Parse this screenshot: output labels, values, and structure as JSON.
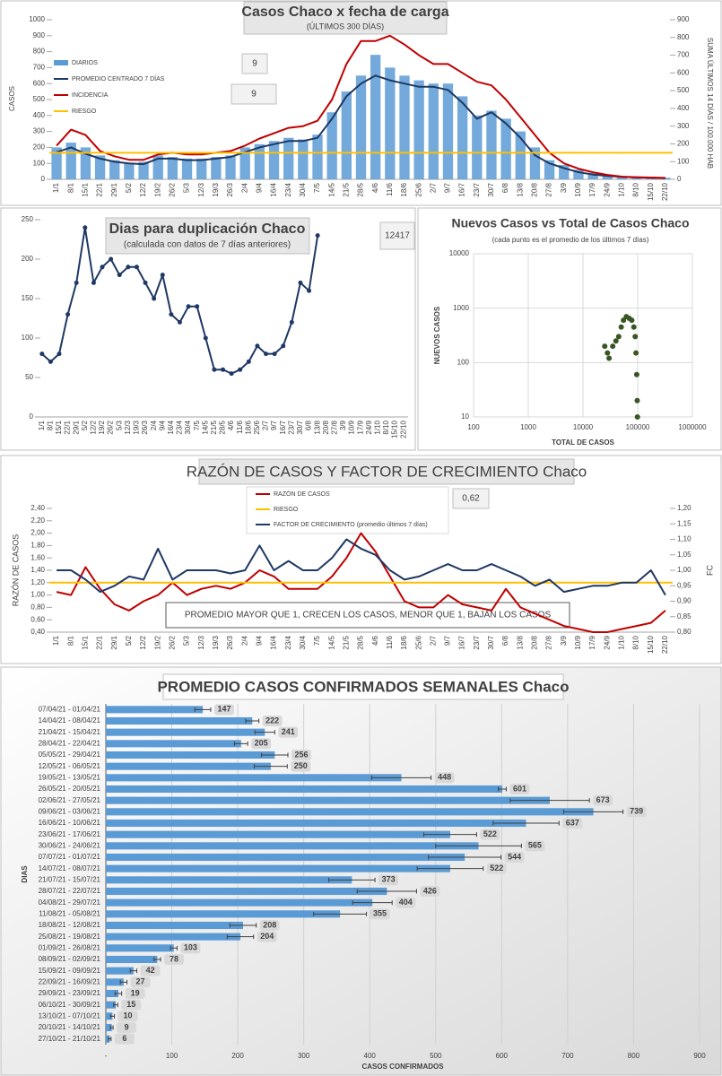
{
  "chart_data": [
    {
      "type": "combo",
      "title": "Casos  Chaco  x fecha de carga",
      "subtitle": "(ÚLTIMOS 300 DÍAS)",
      "y_label": "CASOS",
      "y2_label": "SUMA  ÚLTIMOS 14 DÍAS / 100.000 HAB",
      "annotations": [
        "9",
        "9"
      ],
      "legend": "upper left",
      "grid": false,
      "categories": [
        "1/1",
        "8/1",
        "15/1",
        "22/1",
        "29/1",
        "5/2",
        "12/2",
        "19/2",
        "26/2",
        "5/3",
        "12/3",
        "19/3",
        "26/3",
        "2/4",
        "9/4",
        "16/4",
        "23/4",
        "30/4",
        "7/5",
        "14/5",
        "21/5",
        "28/5",
        "4/6",
        "11/6",
        "18/6",
        "25/6",
        "2/7",
        "9/7",
        "16/7",
        "23/7",
        "30/7",
        "6/8",
        "13/8",
        "20/8",
        "27/8",
        "3/9",
        "10/9",
        "17/9",
        "24/9",
        "1/10",
        "8/10",
        "15/10",
        "22/10"
      ],
      "series": [
        {
          "name": "DIARIOS",
          "color": "#5b9bd5",
          "mark": "bar",
          "values": [
            200,
            230,
            200,
            150,
            120,
            100,
            110,
            150,
            140,
            130,
            130,
            140,
            150,
            200,
            220,
            240,
            260,
            250,
            280,
            420,
            550,
            650,
            780,
            700,
            650,
            620,
            600,
            600,
            520,
            400,
            430,
            380,
            300,
            200,
            120,
            90,
            60,
            40,
            30,
            20,
            15,
            12,
            10
          ]
        },
        {
          "name": "PROMEDIO CENTRADO 7 DÍAS",
          "color": "#1f3864",
          "mark": "line",
          "values": [
            170,
            200,
            160,
            130,
            110,
            100,
            95,
            130,
            130,
            120,
            120,
            130,
            140,
            170,
            200,
            220,
            240,
            240,
            260,
            380,
            520,
            600,
            650,
            620,
            600,
            580,
            580,
            560,
            480,
            380,
            420,
            350,
            260,
            150,
            100,
            70,
            45,
            30,
            22,
            15,
            12,
            10,
            8
          ]
        },
        {
          "name": "INCIDENCIA",
          "color": "#c00000",
          "mark": "line",
          "axis": "y2",
          "values": [
            190,
            280,
            250,
            160,
            130,
            110,
            110,
            140,
            150,
            140,
            140,
            150,
            160,
            190,
            230,
            260,
            290,
            300,
            330,
            450,
            650,
            780,
            780,
            810,
            760,
            700,
            650,
            650,
            600,
            550,
            530,
            450,
            350,
            250,
            150,
            90,
            60,
            40,
            25,
            15,
            12,
            10,
            8
          ]
        },
        {
          "name": "RIESGO",
          "color": "#ffc000",
          "mark": "hline",
          "axis": "y2",
          "value": 150
        }
      ],
      "ylim": [
        0,
        1000
      ],
      "yticks": [
        0,
        100,
        200,
        300,
        400,
        500,
        600,
        700,
        800,
        900,
        1000
      ],
      "y2lim": [
        0,
        900
      ],
      "y2ticks": [
        0,
        100,
        200,
        300,
        400,
        500,
        600,
        700,
        800,
        900
      ]
    },
    {
      "type": "line",
      "title": "Dias para duplicación Chaco",
      "subtitle": "(calculada con datos de 7 días anteriores)",
      "annotations": [
        "12417"
      ],
      "color": "#1f3864",
      "markers": true,
      "categories": [
        "1/1",
        "8/1",
        "15/1",
        "22/1",
        "29/1",
        "5/2",
        "12/2",
        "19/2",
        "26/2",
        "5/3",
        "12/3",
        "19/3",
        "26/3",
        "2/4",
        "9/4",
        "16/4",
        "23/4",
        "30/4",
        "7/5",
        "14/5",
        "21/5",
        "28/5",
        "4/6",
        "11/6",
        "18/6",
        "25/6",
        "2/7",
        "9/7",
        "16/7",
        "23/7",
        "30/7",
        "6/8",
        "13/8",
        "20/8",
        "27/8",
        "3/9",
        "10/9",
        "17/9",
        "24/9",
        "1/10",
        "8/10",
        "15/10",
        "22/10"
      ],
      "values": [
        80,
        70,
        80,
        130,
        170,
        240,
        170,
        190,
        200,
        180,
        190,
        190,
        170,
        150,
        180,
        130,
        120,
        140,
        140,
        100,
        60,
        60,
        55,
        60,
        70,
        90,
        80,
        80,
        90,
        120,
        170,
        160,
        230,
        null,
        null,
        null,
        null,
        null,
        null,
        null,
        null,
        null,
        null
      ],
      "ylim": [
        0,
        250
      ],
      "yticks": [
        0,
        50,
        100,
        150,
        200,
        250
      ]
    },
    {
      "type": "scatter",
      "title": "Nuevos Casos vs Total de Casos Chaco",
      "subtitle": "(cada punto es el promedio de los últimos 7 días)",
      "x_label": "TOTAL DE CASOS",
      "y_label": "NUEVOS  CASOS",
      "color": "#375623",
      "log_x": true,
      "log_y": true,
      "grid": true,
      "x": [
        25000,
        28000,
        30000,
        35000,
        40000,
        45000,
        50000,
        55000,
        62000,
        70000,
        78000,
        85000,
        90000,
        93000,
        96000,
        98000,
        99000
      ],
      "values": [
        200,
        150,
        120,
        200,
        250,
        300,
        450,
        600,
        700,
        650,
        600,
        450,
        300,
        150,
        60,
        20,
        10
      ],
      "xlim": [
        100,
        1000000
      ],
      "xticks": [
        100,
        1000,
        10000,
        100000,
        1000000
      ],
      "ylim": [
        10,
        10000
      ],
      "yticks": [
        10,
        100,
        1000,
        10000
      ]
    },
    {
      "type": "combo",
      "title": "RAZÓN DE CASOS Y FACTOR DE CRECIMIENTO Chaco",
      "y_label": "RAZÓN DE CASOS",
      "y2_label": "FC",
      "annotations": [
        "0,62"
      ],
      "note": "PROMEDIO MAYOR QUE 1, CRECEN LOS CASOS, MENOR QUE 1, BAJAN LOS CASOS",
      "legend": "upper center",
      "grid": false,
      "categories": [
        "1/1",
        "8/1",
        "15/1",
        "22/1",
        "29/1",
        "5/2",
        "12/2",
        "19/2",
        "26/2",
        "5/3",
        "12/3",
        "19/3",
        "26/3",
        "2/4",
        "9/4",
        "16/4",
        "23/4",
        "30/4",
        "7/5",
        "14/5",
        "21/5",
        "28/5",
        "4/6",
        "11/6",
        "18/6",
        "25/6",
        "2/7",
        "9/7",
        "16/7",
        "23/7",
        "30/7",
        "6/8",
        "13/8",
        "20/8",
        "27/8",
        "3/9",
        "10/9",
        "17/9",
        "24/9",
        "1/10",
        "8/10",
        "15/10",
        "22/10"
      ],
      "series": [
        {
          "name": "RAZÓN DE CASOS",
          "color": "#c00000",
          "mark": "line",
          "values": [
            1.05,
            1.0,
            1.45,
            1.1,
            0.85,
            0.75,
            0.9,
            1.0,
            1.2,
            1.0,
            1.1,
            1.15,
            1.1,
            1.2,
            1.4,
            1.3,
            1.1,
            1.1,
            1.1,
            1.3,
            1.6,
            2.0,
            1.7,
            1.3,
            0.9,
            0.8,
            0.8,
            1.0,
            0.85,
            0.8,
            0.75,
            1.1,
            0.8,
            0.7,
            0.6,
            0.5,
            0.45,
            0.4,
            0.4,
            0.45,
            0.5,
            0.55,
            0.75
          ]
        },
        {
          "name": "RIESGO",
          "color": "#ffc000",
          "mark": "hline",
          "value": 1.2
        },
        {
          "name": "FACTOR DE CRECIMIENTO (promedio últimos 7 días)",
          "color": "#1f3864",
          "mark": "line",
          "axis": "y2",
          "values": [
            1.0,
            1.0,
            0.97,
            0.93,
            0.95,
            0.98,
            0.97,
            1.07,
            0.97,
            1.0,
            1.0,
            1.0,
            0.99,
            1.0,
            1.08,
            1.0,
            1.03,
            1.0,
            1.0,
            1.04,
            1.1,
            1.07,
            1.05,
            1.0,
            0.97,
            0.98,
            1.0,
            1.02,
            1.0,
            1.0,
            1.02,
            1.0,
            0.98,
            0.95,
            0.97,
            0.93,
            0.94,
            0.95,
            0.95,
            0.96,
            0.96,
            1.0,
            0.92
          ]
        }
      ],
      "ylim": [
        0.4,
        2.4
      ],
      "yticks": [
        {
          "value": 0.4,
          "label": "0,40"
        },
        {
          "value": 0.6,
          "label": "0,60"
        },
        {
          "value": 0.8,
          "label": "0,80"
        },
        {
          "value": 1.0,
          "label": "1,00"
        },
        {
          "value": 1.2,
          "label": "1,20"
        },
        {
          "value": 1.4,
          "label": "1,40"
        },
        {
          "value": 1.6,
          "label": "1,60"
        },
        {
          "value": 1.8,
          "label": "1,80"
        },
        {
          "value": 2.0,
          "label": "2,00"
        },
        {
          "value": 2.2,
          "label": "2,20"
        },
        {
          "value": 2.4,
          "label": "2,40"
        }
      ],
      "y2lim": [
        0.8,
        1.2
      ],
      "y2ticks": [
        {
          "value": 0.8,
          "label": "0,80"
        },
        {
          "value": 0.85,
          "label": "0,85"
        },
        {
          "value": 0.9,
          "label": "0,90"
        },
        {
          "value": 0.95,
          "label": "0,95"
        },
        {
          "value": 1.0,
          "label": "1,00"
        },
        {
          "value": 1.05,
          "label": "1,05"
        },
        {
          "value": 1.1,
          "label": "1,10"
        },
        {
          "value": 1.15,
          "label": "1,15"
        },
        {
          "value": 1.2,
          "label": "1,20"
        }
      ]
    },
    {
      "type": "hbar",
      "title": "PROMEDIO CASOS CONFIRMADOS SEMANALES Chaco",
      "x_label": "CASOS CONFIRMADOS",
      "y_label": "DIAS",
      "color": "#5b9bd5",
      "grid": true,
      "categories": [
        "07/04/21 - 01/04/21",
        "14/04/21 - 08/04/21",
        "21/04/21 - 15/04/21",
        "28/04/21 - 22/04/21",
        "05/05/21 - 29/04/21",
        "12/05/21 - 06/05/21",
        "19/05/21 - 13/05/21",
        "26/05/21 - 20/05/21",
        "02/06/21 - 27/05/21",
        "09/06/21 - 03/06/21",
        "16/06/21 - 10/06/21",
        "23/06/21 - 17/06/21",
        "30/06/21 - 24/06/21",
        "07/07/21 - 01/07/21",
        "14/07/21 - 08/07/21",
        "21/07/21 - 15/07/21",
        "28/07/21 - 22/07/21",
        "04/08/21 - 29/07/21",
        "11/08/21 - 05/08/21",
        "18/08/21 - 12/08/21",
        "25/08/21 - 19/08/21",
        "01/09/21 - 26/08/21",
        "08/09/21 - 02/09/21",
        "15/09/21 - 09/09/21",
        "22/09/21 - 16/09/21",
        "29/09/21 - 23/09/21",
        "06/10/21 - 30/09/21",
        "13/10/21 - 07/10/21",
        "20/10/21 - 14/10/21",
        "27/10/21 - 21/10/21"
      ],
      "values": [
        147,
        222,
        241,
        205,
        256,
        250,
        448,
        601,
        673,
        739,
        637,
        522,
        565,
        544,
        522,
        373,
        426,
        404,
        355,
        208,
        204,
        103,
        78,
        42,
        27,
        19,
        15,
        10,
        9,
        6
      ],
      "errors": [
        12,
        10,
        15,
        10,
        20,
        25,
        45,
        6,
        60,
        45,
        50,
        40,
        65,
        55,
        50,
        35,
        45,
        30,
        40,
        20,
        20,
        5,
        5,
        5,
        5,
        5,
        3,
        3,
        2,
        2
      ],
      "xlim": [
        0,
        900
      ],
      "xticks": [
        {
          "value": 0,
          "label": "-"
        },
        100,
        200,
        300,
        400,
        500,
        600,
        700,
        800,
        900
      ]
    }
  ]
}
